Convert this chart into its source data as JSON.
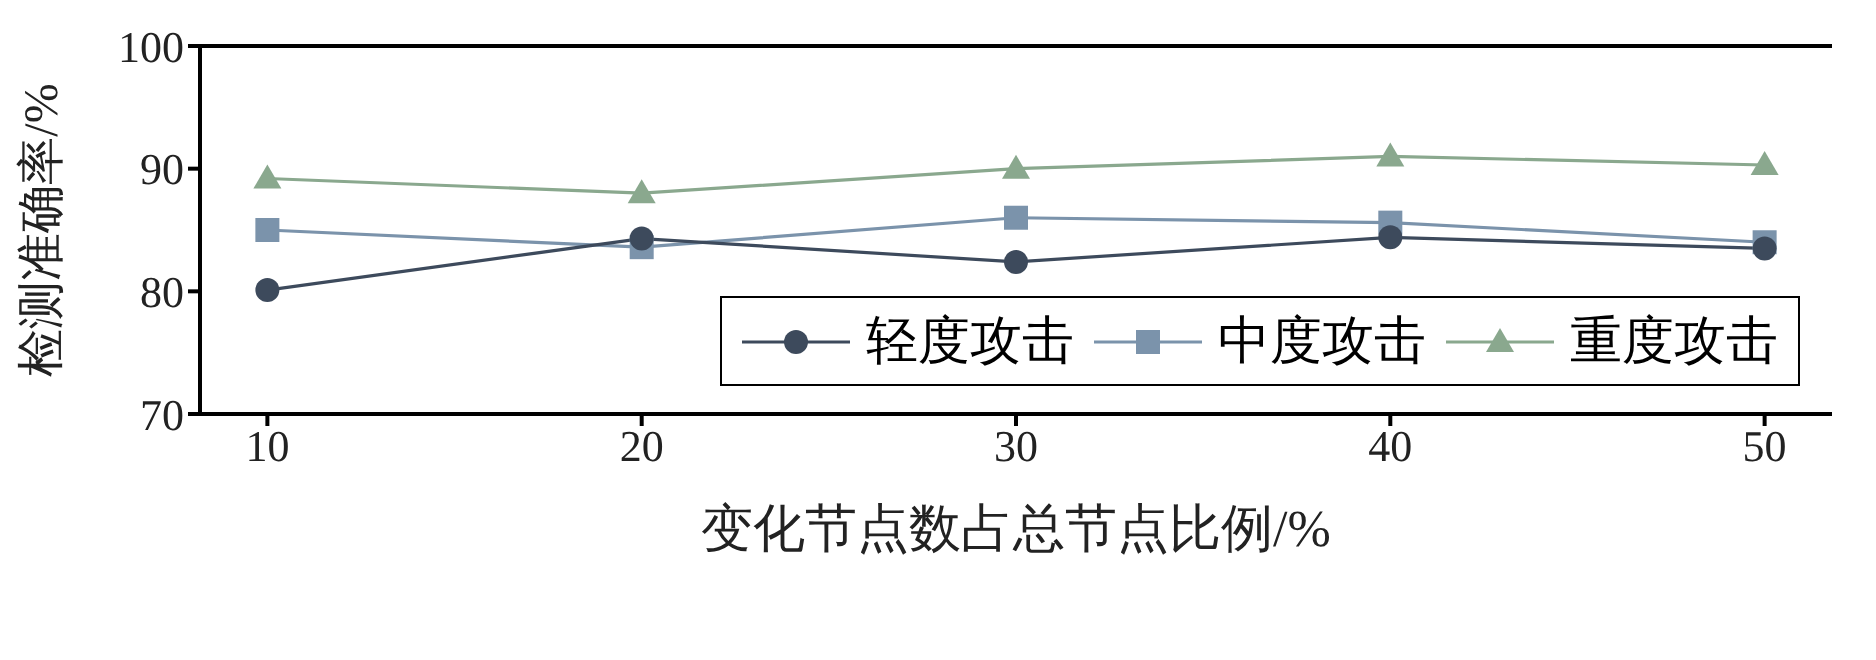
{
  "chart_data": {
    "type": "line",
    "xlabel": "变化节点数占总节点比例/%",
    "ylabel": "检测准确率/%",
    "x": [
      10,
      20,
      30,
      40,
      50
    ],
    "series": [
      {
        "name": "轻度攻击",
        "color": "#3d4a5c",
        "marker": "circle",
        "values": [
          80.1,
          84.3,
          82.4,
          84.4,
          83.5
        ]
      },
      {
        "name": "中度攻击",
        "color": "#7b93ab",
        "marker": "square",
        "values": [
          85.0,
          83.6,
          86.0,
          85.6,
          84.0
        ]
      },
      {
        "name": "重度攻击",
        "color": "#8aa88e",
        "marker": "triangle",
        "values": [
          89.2,
          88.0,
          90.0,
          91.0,
          90.3
        ]
      }
    ],
    "xlim": [
      8.2,
      51.8
    ],
    "xticks": [
      10,
      20,
      30,
      40,
      50
    ],
    "ylim": [
      70,
      100
    ],
    "yticks": [
      70,
      80,
      90,
      100
    ],
    "grid": false,
    "legend": "bottom right",
    "line_style": "solid"
  }
}
